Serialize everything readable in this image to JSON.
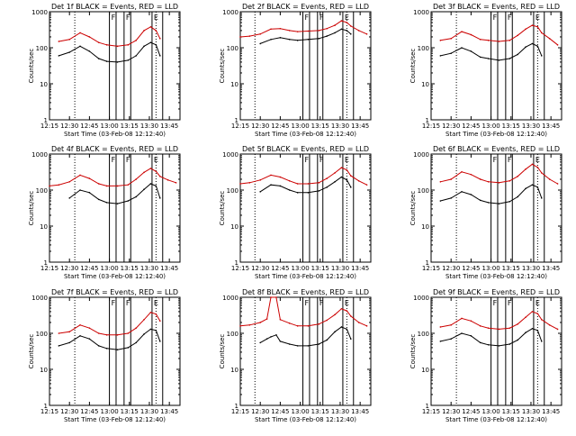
{
  "figure": {
    "time_axis_label": "Start Time (03-Feb-08 12:12:40)",
    "y_axis_label": "Counts/sec",
    "colors": {
      "events": "#000000",
      "lld": "#cc0000",
      "axes": "#000000"
    }
  },
  "chart_data": [
    {
      "type": "line",
      "title": "Det 1f BLACK = Events, RED = LLD",
      "xlabel": "Start Time (03-Feb-08 12:12:40)",
      "ylabel": "Counts/sec",
      "yscale": "log",
      "ylim": [
        1,
        1000
      ],
      "xlim": [
        "12:15",
        "13:53"
      ],
      "x_ticks": [
        "12:15",
        "12:30",
        "12:45",
        "13:00",
        "13:15",
        "13:30",
        "13:45"
      ],
      "y_ticks": [
        "1",
        "10",
        "100",
        "1000"
      ],
      "time_markers": [
        "12:34",
        "13:35"
      ],
      "band_markers": [
        {
          "label": "F",
          "start": "13:00",
          "end": "13:05"
        },
        {
          "label": "F",
          "start": "13:11",
          "end": "13:16"
        },
        {
          "label": "E",
          "start": "13:32",
          "end": "13:40"
        }
      ],
      "x": [
        "12:22",
        "12:30",
        "12:38",
        "12:45",
        "12:52",
        "12:58",
        "13:06",
        "13:14",
        "13:20",
        "13:26",
        "13:31",
        "13:35",
        "13:38"
      ],
      "series": [
        {
          "name": "LLD",
          "values": [
            150,
            170,
            260,
            200,
            140,
            120,
            110,
            120,
            160,
            300,
            380,
            300,
            180
          ]
        },
        {
          "name": "Events",
          "values": [
            60,
            75,
            110,
            80,
            50,
            42,
            40,
            45,
            60,
            110,
            140,
            120,
            60
          ]
        }
      ]
    },
    {
      "type": "line",
      "title": "Det 2f BLACK = Events, RED = LLD",
      "xlabel": "Start Time (03-Feb-08 12:12:40)",
      "ylabel": "Counts/sec",
      "yscale": "log",
      "ylim": [
        1,
        1000
      ],
      "xlim": [
        "12:15",
        "13:53"
      ],
      "x_ticks": [
        "12:15",
        "12:30",
        "12:45",
        "13:00",
        "13:15",
        "13:30",
        "13:45"
      ],
      "y_ticks": [
        "1",
        "10",
        "100",
        "1000"
      ],
      "time_markers": [
        "12:26",
        "13:35"
      ],
      "band_markers": [
        {
          "label": "F",
          "start": "13:02",
          "end": "13:07"
        },
        {
          "label": "F",
          "start": "13:13",
          "end": "13:17"
        },
        {
          "label": "E",
          "start": "13:32",
          "end": "13:40"
        }
      ],
      "x": [
        "12:15",
        "12:22",
        "12:30",
        "12:38",
        "12:45",
        "12:52",
        "12:58",
        "13:06",
        "13:14",
        "13:20",
        "13:26",
        "13:31",
        "13:35",
        "13:38",
        "13:44",
        "13:50"
      ],
      "series": [
        {
          "name": "LLD",
          "values": [
            200,
            210,
            240,
            330,
            340,
            300,
            280,
            290,
            300,
            340,
            420,
            560,
            500,
            400,
            300,
            240
          ]
        },
        {
          "name": "Events",
          "values": [
            null,
            null,
            130,
            170,
            190,
            170,
            160,
            170,
            180,
            210,
            260,
            330,
            300,
            240,
            null,
            null
          ]
        }
      ]
    },
    {
      "type": "line",
      "title": "Det 3f BLACK = Events, RED = LLD",
      "xlabel": "Start Time (03-Feb-08 12:12:40)",
      "ylabel": "Counts/sec",
      "yscale": "log",
      "ylim": [
        1,
        1000
      ],
      "xlim": [
        "12:15",
        "13:53"
      ],
      "x_ticks": [
        "12:15",
        "12:30",
        "12:45",
        "13:00",
        "13:15",
        "13:30",
        "13:45"
      ],
      "y_ticks": [
        "1",
        "10",
        "100",
        "1000"
      ],
      "time_markers": [
        "12:34",
        "13:35"
      ],
      "band_markers": [
        {
          "label": "F",
          "start": "13:00",
          "end": "13:05"
        },
        {
          "label": "F",
          "start": "13:11",
          "end": "13:16"
        },
        {
          "label": "E",
          "start": "13:32",
          "end": "13:40"
        }
      ],
      "x": [
        "12:22",
        "12:30",
        "12:38",
        "12:45",
        "12:52",
        "12:58",
        "13:06",
        "13:14",
        "13:20",
        "13:26",
        "13:31",
        "13:35",
        "13:38",
        "13:44",
        "13:50"
      ],
      "series": [
        {
          "name": "LLD",
          "values": [
            160,
            180,
            280,
            230,
            170,
            160,
            150,
            160,
            220,
            330,
            420,
            380,
            260,
            180,
            120
          ]
        },
        {
          "name": "Events",
          "values": [
            60,
            70,
            100,
            80,
            55,
            50,
            45,
            50,
            65,
            105,
            130,
            110,
            60,
            null,
            null
          ]
        }
      ]
    },
    {
      "type": "line",
      "title": "Det 4f BLACK = Events, RED = LLD",
      "xlabel": "Start Time (03-Feb-08 12:12:40)",
      "ylabel": "Counts/sec",
      "yscale": "log",
      "ylim": [
        1,
        1000
      ],
      "xlim": [
        "12:15",
        "13:53"
      ],
      "x_ticks": [
        "12:15",
        "12:30",
        "12:45",
        "13:00",
        "13:15",
        "13:30",
        "13:45"
      ],
      "y_ticks": [
        "1",
        "10",
        "100",
        "1000"
      ],
      "time_markers": [
        "12:34",
        "13:35"
      ],
      "band_markers": [
        {
          "label": "F",
          "start": "13:00",
          "end": "13:05"
        },
        {
          "label": "F",
          "start": "13:11",
          "end": "13:16"
        },
        {
          "label": "E",
          "start": "13:32",
          "end": "13:40"
        }
      ],
      "x": [
        "12:15",
        "12:22",
        "12:30",
        "12:38",
        "12:45",
        "12:52",
        "12:58",
        "13:06",
        "13:14",
        "13:20",
        "13:26",
        "13:31",
        "13:35",
        "13:38",
        "13:44",
        "13:50"
      ],
      "series": [
        {
          "name": "LLD",
          "values": [
            130,
            140,
            170,
            260,
            210,
            150,
            130,
            130,
            140,
            200,
            310,
            400,
            330,
            240,
            190,
            160
          ]
        },
        {
          "name": "Events",
          "values": [
            null,
            null,
            60,
            100,
            85,
            55,
            45,
            42,
            50,
            65,
            105,
            150,
            130,
            60,
            null,
            null
          ]
        }
      ]
    },
    {
      "type": "line",
      "title": "Det 5f BLACK = Events, RED = LLD",
      "xlabel": "Start Time (03-Feb-08 12:12:40)",
      "ylabel": "Counts/sec",
      "yscale": "log",
      "ylim": [
        1,
        1000
      ],
      "xlim": [
        "12:15",
        "13:53"
      ],
      "x_ticks": [
        "12:15",
        "12:30",
        "12:45",
        "13:00",
        "13:15",
        "13:30",
        "13:45"
      ],
      "y_ticks": [
        "1",
        "10",
        "100",
        "1000"
      ],
      "time_markers": [
        "12:26",
        "13:35"
      ],
      "band_markers": [
        {
          "label": "F",
          "start": "13:02",
          "end": "13:07"
        },
        {
          "label": "F",
          "start": "13:13",
          "end": "13:17"
        },
        {
          "label": "E",
          "start": "13:32",
          "end": "13:40"
        }
      ],
      "x": [
        "12:15",
        "12:22",
        "12:30",
        "12:38",
        "12:45",
        "12:52",
        "12:58",
        "13:06",
        "13:14",
        "13:20",
        "13:26",
        "13:31",
        "13:35",
        "13:38",
        "13:44",
        "13:50"
      ],
      "series": [
        {
          "name": "LLD",
          "values": [
            150,
            160,
            190,
            260,
            230,
            180,
            150,
            150,
            160,
            210,
            300,
            420,
            360,
            250,
            180,
            140
          ]
        },
        {
          "name": "Events",
          "values": [
            null,
            null,
            90,
            140,
            130,
            100,
            85,
            85,
            95,
            120,
            170,
            230,
            190,
            120,
            null,
            null
          ]
        }
      ]
    },
    {
      "type": "line",
      "title": "Det 6f BLACK = Events, RED = LLD",
      "xlabel": "Start Time (03-Feb-08 12:12:40)",
      "ylabel": "Counts/sec",
      "yscale": "log",
      "ylim": [
        1,
        1000
      ],
      "xlim": [
        "12:15",
        "13:53"
      ],
      "x_ticks": [
        "12:15",
        "12:30",
        "12:45",
        "13:00",
        "13:15",
        "13:30",
        "13:45"
      ],
      "y_ticks": [
        "1",
        "10",
        "100",
        "1000"
      ],
      "time_markers": [
        "12:34",
        "13:35"
      ],
      "band_markers": [
        {
          "label": "F",
          "start": "13:00",
          "end": "13:05"
        },
        {
          "label": "F",
          "start": "13:11",
          "end": "13:16"
        },
        {
          "label": "E",
          "start": "13:32",
          "end": "13:40"
        }
      ],
      "x": [
        "12:22",
        "12:30",
        "12:38",
        "12:45",
        "12:52",
        "12:58",
        "13:06",
        "13:14",
        "13:20",
        "13:26",
        "13:31",
        "13:35",
        "13:38",
        "13:44",
        "13:50"
      ],
      "series": [
        {
          "name": "LLD",
          "values": [
            170,
            200,
            320,
            270,
            200,
            170,
            160,
            180,
            240,
            380,
            520,
            430,
            300,
            200,
            150
          ]
        },
        {
          "name": "Events",
          "values": [
            50,
            60,
            90,
            75,
            52,
            45,
            42,
            48,
            65,
            110,
            140,
            120,
            60,
            null,
            null
          ]
        }
      ]
    },
    {
      "type": "line",
      "title": "Det 7f BLACK = Events, RED = LLD",
      "xlabel": "Start Time (03-Feb-08 12:12:40)",
      "ylabel": "Counts/sec",
      "yscale": "log",
      "ylim": [
        1,
        1000
      ],
      "xlim": [
        "12:15",
        "13:53"
      ],
      "x_ticks": [
        "12:15",
        "12:30",
        "12:45",
        "13:00",
        "13:15",
        "13:30",
        "13:45"
      ],
      "y_ticks": [
        "1",
        "10",
        "100",
        "1000"
      ],
      "time_markers": [
        "12:34",
        "13:35"
      ],
      "band_markers": [
        {
          "label": "F",
          "start": "13:00",
          "end": "13:05"
        },
        {
          "label": "F",
          "start": "13:11",
          "end": "13:16"
        },
        {
          "label": "E",
          "start": "13:32",
          "end": "13:40"
        }
      ],
      "x": [
        "12:22",
        "12:30",
        "12:38",
        "12:45",
        "12:52",
        "12:58",
        "13:06",
        "13:14",
        "13:20",
        "13:26",
        "13:31",
        "13:35",
        "13:38"
      ],
      "series": [
        {
          "name": "LLD",
          "values": [
            100,
            110,
            170,
            140,
            100,
            90,
            90,
            100,
            140,
            240,
            380,
            340,
            220
          ]
        },
        {
          "name": "Events",
          "values": [
            45,
            55,
            85,
            70,
            45,
            38,
            35,
            40,
            55,
            95,
            130,
            120,
            60
          ]
        }
      ]
    },
    {
      "type": "line",
      "title": "Det 8f BLACK = Events, RED = LLD",
      "xlabel": "Start Time (03-Feb-08 12:12:40)",
      "ylabel": "Counts/sec",
      "yscale": "log",
      "ylim": [
        1,
        1000
      ],
      "xlim": [
        "12:15",
        "13:53"
      ],
      "x_ticks": [
        "12:15",
        "12:30",
        "12:45",
        "13:00",
        "13:15",
        "13:30",
        "13:45"
      ],
      "y_ticks": [
        "1",
        "10",
        "100",
        "1000"
      ],
      "time_markers": [
        "12:26",
        "13:35"
      ],
      "band_markers": [
        {
          "label": "F",
          "start": "13:02",
          "end": "13:07"
        },
        {
          "label": "F",
          "start": "13:13",
          "end": "13:17"
        },
        {
          "label": "E",
          "start": "13:32",
          "end": "13:40"
        }
      ],
      "x": [
        "12:15",
        "12:22",
        "12:30",
        "12:35",
        "12:38",
        "12:42",
        "12:45",
        "12:52",
        "12:58",
        "13:06",
        "13:14",
        "13:20",
        "13:26",
        "13:31",
        "13:35",
        "13:38",
        "13:44",
        "13:50"
      ],
      "series": [
        {
          "name": "LLD",
          "values": [
            160,
            170,
            200,
            250,
            1000,
            1000,
            240,
            190,
            160,
            160,
            180,
            230,
            330,
            480,
            420,
            300,
            200,
            160
          ]
        },
        {
          "name": "Events",
          "values": [
            null,
            null,
            55,
            70,
            80,
            90,
            60,
            50,
            45,
            45,
            50,
            65,
            110,
            150,
            130,
            70,
            null,
            null
          ]
        }
      ]
    },
    {
      "type": "line",
      "title": "Det 9f BLACK = Events, RED = LLD",
      "xlabel": "Start Time (03-Feb-08 12:12:40)",
      "ylabel": "Counts/sec",
      "yscale": "log",
      "ylim": [
        1,
        1000
      ],
      "xlim": [
        "12:15",
        "13:53"
      ],
      "x_ticks": [
        "12:15",
        "12:30",
        "12:45",
        "13:00",
        "13:15",
        "13:30",
        "13:45"
      ],
      "y_ticks": [
        "1",
        "10",
        "100",
        "1000"
      ],
      "time_markers": [
        "12:34",
        "13:35"
      ],
      "band_markers": [
        {
          "label": "F",
          "start": "13:00",
          "end": "13:05"
        },
        {
          "label": "F",
          "start": "13:11",
          "end": "13:16"
        },
        {
          "label": "E",
          "start": "13:32",
          "end": "13:40"
        }
      ],
      "x": [
        "12:22",
        "12:30",
        "12:38",
        "12:45",
        "12:52",
        "12:58",
        "13:06",
        "13:14",
        "13:20",
        "13:26",
        "13:31",
        "13:35",
        "13:38",
        "13:44",
        "13:50"
      ],
      "series": [
        {
          "name": "LLD",
          "values": [
            150,
            170,
            260,
            220,
            160,
            140,
            130,
            140,
            180,
            280,
            400,
            350,
            240,
            170,
            130
          ]
        },
        {
          "name": "Events",
          "values": [
            60,
            70,
            100,
            85,
            55,
            48,
            45,
            50,
            65,
            105,
            135,
            120,
            60,
            null,
            null
          ]
        }
      ]
    }
  ]
}
